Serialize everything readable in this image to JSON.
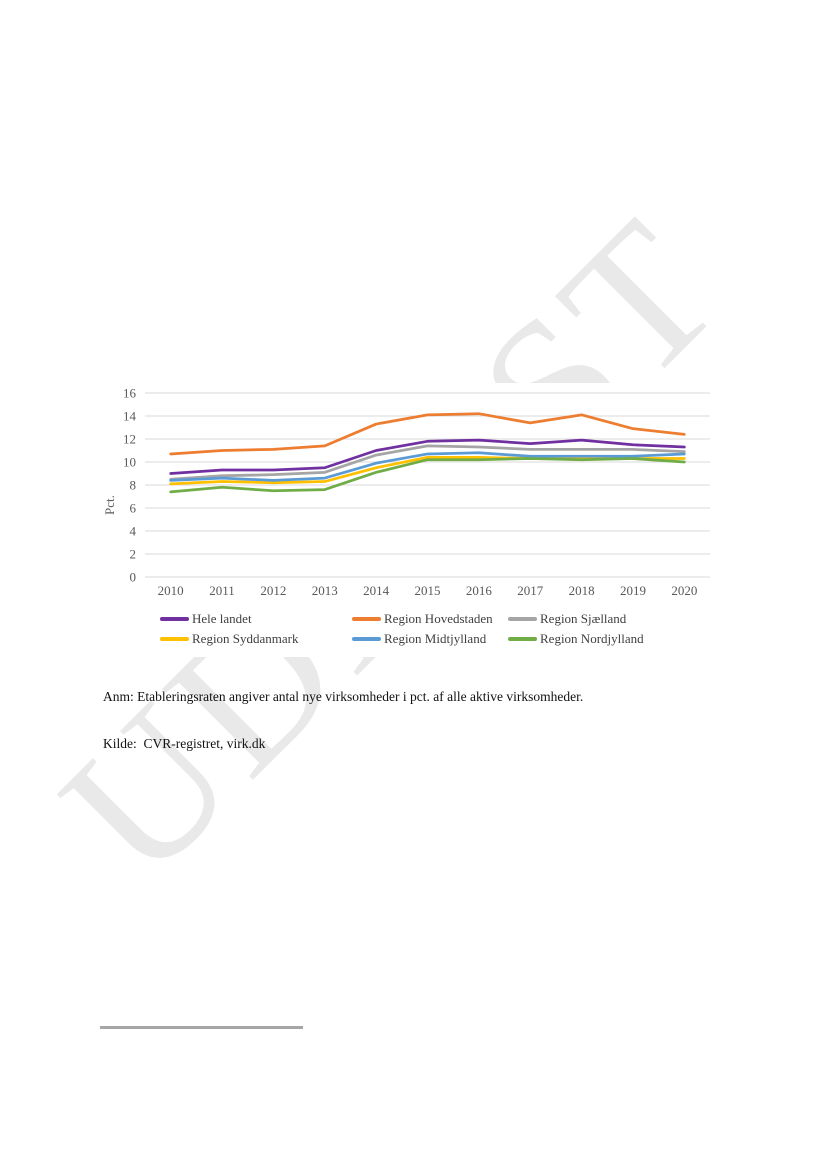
{
  "watermark": {
    "text": "UDKAST",
    "color": "#e9e9e9"
  },
  "notes": {
    "anm": "Anm: Etableringsraten angiver antal nye virksomheder i pct. af alle aktive virksomheder.",
    "kilde": "Kilde:  CVR-registret, virk.dk"
  },
  "chart_data": {
    "type": "line",
    "title": "",
    "xlabel": "",
    "ylabel": "Pct.",
    "ylim": [
      0,
      16
    ],
    "ytick_step": 2,
    "grid": true,
    "gridline_color": "#d9d9d9",
    "tick_label_color": "#595959",
    "legend_position": "bottom",
    "categories": [
      "2010",
      "2011",
      "2012",
      "2013",
      "2014",
      "2015",
      "2016",
      "2017",
      "2018",
      "2019",
      "2020"
    ],
    "series": [
      {
        "name": "Hele landet",
        "color": "#7030A0",
        "values": [
          9.0,
          9.3,
          9.3,
          9.5,
          11.0,
          11.8,
          11.9,
          11.6,
          11.9,
          11.5,
          11.3
        ]
      },
      {
        "name": "Region Hovedstaden",
        "color": "#ED7D31",
        "values": [
          10.7,
          11.0,
          11.1,
          11.4,
          13.3,
          14.1,
          14.2,
          13.4,
          14.1,
          12.9,
          12.4
        ]
      },
      {
        "name": "Region Sjælland",
        "color": "#A5A5A5",
        "values": [
          8.5,
          8.8,
          8.9,
          9.1,
          10.6,
          11.4,
          11.3,
          11.1,
          11.1,
          11.1,
          10.9
        ]
      },
      {
        "name": "Region Syddanmark",
        "color": "#FFC000",
        "values": [
          8.1,
          8.3,
          8.2,
          8.3,
          9.5,
          10.4,
          10.4,
          10.3,
          10.3,
          10.3,
          10.3
        ]
      },
      {
        "name": "Region Midtjylland",
        "color": "#5B9BD5",
        "values": [
          8.4,
          8.6,
          8.4,
          8.6,
          9.9,
          10.7,
          10.8,
          10.5,
          10.5,
          10.5,
          10.7
        ]
      },
      {
        "name": "Region Nordjylland",
        "color": "#70AD47",
        "values": [
          7.4,
          7.8,
          7.5,
          7.6,
          9.1,
          10.2,
          10.2,
          10.3,
          10.2,
          10.3,
          10.0
        ]
      }
    ]
  }
}
